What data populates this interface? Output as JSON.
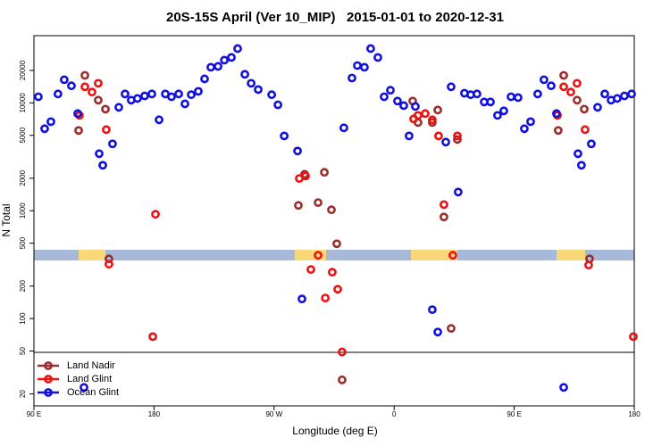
{
  "chart_data": {
    "type": "scatter",
    "title": "20S-15S April (Ver 10_MIP)   2015-01-01 to 2020-12-31",
    "x_label": "Longitude (deg E)",
    "y_label": "N Total",
    "xlim": [
      90,
      540
    ],
    "xticks": [
      {
        "value": 90,
        "label": "90 E"
      },
      {
        "value": 180,
        "label": "180"
      },
      {
        "value": 270,
        "label": "90 W"
      },
      {
        "value": 360,
        "label": "0"
      },
      {
        "value": 450,
        "label": "90 E"
      },
      {
        "value": 540,
        "label": "180"
      }
    ],
    "ylim": [
      15.5,
      42000
    ],
    "y_log": true,
    "yticks": [
      20,
      50,
      100,
      200,
      500,
      1000,
      2000,
      5000,
      10000,
      20000
    ],
    "legend": "lower left",
    "series": [
      {
        "name": "Land Nadir",
        "color": "#9b2d2d",
        "x": [
          123.5,
          128.2,
          138.2,
          143.6,
          146.2,
          288.2,
          292.9,
          303.0,
          307.7,
          313.0,
          317.0,
          321.0,
          373.9,
          377.9,
          388.6,
          392.7,
          397.3,
          402.7,
          407.4,
          483.0,
          487.1,
          497.1,
          502.5,
          506.5
        ],
        "values": [
          5550,
          18000,
          10600,
          8750,
          358,
          1120,
          2180,
          1190,
          2270,
          1020,
          494,
          27,
          10400,
          6580,
          6580,
          8590,
          875,
          81,
          4580,
          5550,
          18000,
          10600,
          8750,
          358
        ]
      },
      {
        "name": "Land Glint",
        "color": "#ee1111",
        "x": [
          124.1,
          128.2,
          133.5,
          138.2,
          144.2,
          146.2,
          181.1,
          179.1,
          288.9,
          293.6,
          297.6,
          303.0,
          308.4,
          313.6,
          317.7,
          321.0,
          374.6,
          377.9,
          383.3,
          388.6,
          393.3,
          397.3,
          404.0,
          407.4,
          482.4,
          487.1,
          492.4,
          497.1,
          503.1,
          505.8,
          539.3
        ],
        "values": [
          7660,
          14100,
          12600,
          15200,
          5650,
          319,
          927,
          68,
          1990,
          2100,
          285,
          386,
          155,
          269,
          187,
          49,
          7100,
          7660,
          7960,
          6970,
          4940,
          1140,
          386,
          4940,
          7660,
          14100,
          12600,
          15200,
          5650,
          313,
          68
        ]
      },
      {
        "name": "Ocean Glint",
        "color": "#1111dd",
        "x": [
          93.3,
          98.0,
          102.7,
          108.0,
          112.7,
          118.1,
          122.8,
          127.5,
          138.9,
          141.6,
          148.9,
          153.6,
          158.3,
          162.9,
          167.6,
          173.0,
          178.4,
          183.8,
          188.5,
          193.1,
          198.5,
          203.2,
          207.9,
          213.2,
          217.9,
          222.6,
          228.0,
          232.7,
          238.0,
          242.7,
          248.1,
          252.8,
          258.1,
          268.2,
          272.9,
          277.6,
          287.6,
          290.9,
          322.3,
          328.4,
          332.4,
          337.7,
          342.4,
          347.8,
          352.5,
          357.2,
          362.5,
          367.2,
          371.2,
          375.9,
          388.6,
          392.7,
          398.7,
          402.7,
          408.0,
          412.7,
          417.4,
          422.1,
          427.5,
          432.2,
          437.5,
          442.2,
          447.6,
          452.9,
          457.6,
          462.3,
          467.6,
          472.3,
          477.7,
          481.7,
          487.1,
          497.8,
          500.4,
          507.8,
          512.5,
          517.9,
          522.6,
          527.2,
          532.6,
          538.0
        ],
        "values": [
          11400,
          5760,
          6700,
          12100,
          16400,
          14400,
          7960,
          23,
          3380,
          2640,
          4170,
          9100,
          12100,
          10600,
          11000,
          11600,
          12100,
          6970,
          12100,
          11400,
          12100,
          9800,
          11900,
          12800,
          16700,
          21400,
          21800,
          24900,
          26400,
          31900,
          18400,
          15200,
          13300,
          11900,
          9600,
          4940,
          3580,
          152,
          5870,
          17000,
          22200,
          21400,
          31900,
          26400,
          11400,
          13100,
          10400,
          9440,
          4940,
          9270,
          121,
          75,
          4330,
          14100,
          1490,
          12300,
          11900,
          12100,
          10200,
          10200,
          7660,
          8430,
          11400,
          11200,
          5760,
          6700,
          12100,
          16400,
          14400,
          7960,
          23,
          3380,
          2640,
          4170,
          9100,
          12100,
          10600,
          11000,
          11600,
          12100
        ]
      }
    ]
  }
}
